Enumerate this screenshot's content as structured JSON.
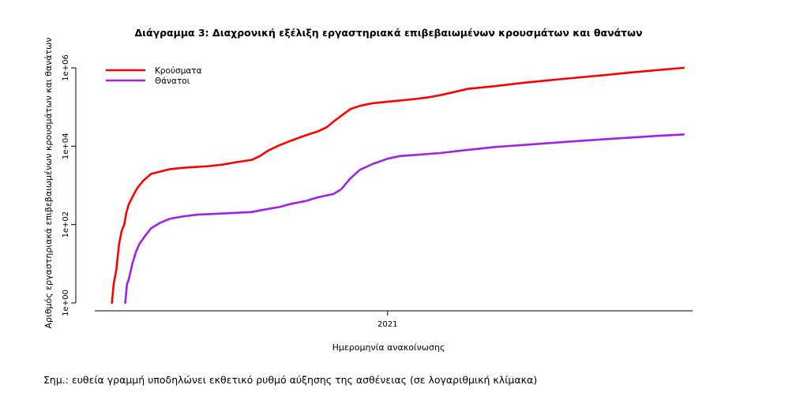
{
  "top_fragment": "¨ ¨",
  "note": "Σημ.: ευθεία γραμμή υποδηλώνει εκθετικό ρυθμό αύξησης της ασθένειας (σε λογαριθμική κλίμακα)",
  "chart_data": {
    "type": "line",
    "title": "Διάγραμμα 3: Διαχρονική εξέλιξη εργαστηριακά επιβεβαιωμένων κρουσμάτων και θανάτων",
    "xlabel": "Ημερομηνία ανακοίνωσης",
    "ylabel": "Αριθμός εργαστηριακά επιβεβαιωμένων κρουσμάτων και θανάτων",
    "y_scale": "log10",
    "ylim": [
      1,
      1000000
    ],
    "yticks": [
      {
        "value": 1,
        "label": "1e+00"
      },
      {
        "value": 100,
        "label": "1e+02"
      },
      {
        "value": 10000,
        "label": "1e+04"
      },
      {
        "value": 1000000,
        "label": "1e+06"
      }
    ],
    "xlim": [
      "2020-01-20",
      "2021-12-10"
    ],
    "xticks": [
      {
        "value": "2021-01-01",
        "label": "2021"
      }
    ],
    "grid": false,
    "legend": "top-left",
    "series": [
      {
        "name": "Κρούσματα",
        "color": "#ff0000",
        "points": [
          [
            "2020-02-26",
            1
          ],
          [
            "2020-02-28",
            3
          ],
          [
            "2020-03-02",
            7
          ],
          [
            "2020-03-05",
            31
          ],
          [
            "2020-03-08",
            70
          ],
          [
            "2020-03-11",
            100
          ],
          [
            "2020-03-13",
            190
          ],
          [
            "2020-03-16",
            331
          ],
          [
            "2020-03-20",
            500
          ],
          [
            "2020-03-25",
            820
          ],
          [
            "2020-04-01",
            1300
          ],
          [
            "2020-04-10",
            1960
          ],
          [
            "2020-04-20",
            2245
          ],
          [
            "2020-05-01",
            2591
          ],
          [
            "2020-05-15",
            2800
          ],
          [
            "2020-06-01",
            2958
          ],
          [
            "2020-06-15",
            3121
          ],
          [
            "2020-07-01",
            3432
          ],
          [
            "2020-07-15",
            3900
          ],
          [
            "2020-08-01",
            4477
          ],
          [
            "2020-08-10",
            5500
          ],
          [
            "2020-08-20",
            7800
          ],
          [
            "2020-09-01",
            10500
          ],
          [
            "2020-09-15",
            14000
          ],
          [
            "2020-10-01",
            19000
          ],
          [
            "2020-10-15",
            24000
          ],
          [
            "2020-10-25",
            31000
          ],
          [
            "2020-11-01",
            42000
          ],
          [
            "2020-11-10",
            60000
          ],
          [
            "2020-11-20",
            88000
          ],
          [
            "2020-12-01",
            107000
          ],
          [
            "2020-12-15",
            125000
          ],
          [
            "2021-01-01",
            137000
          ],
          [
            "2021-01-15",
            147000
          ],
          [
            "2021-02-01",
            160000
          ],
          [
            "2021-02-15",
            175000
          ],
          [
            "2021-03-01",
            200000
          ],
          [
            "2021-03-15",
            235000
          ],
          [
            "2021-04-01",
            290000
          ],
          [
            "2021-05-01",
            340000
          ],
          [
            "2021-06-01",
            410000
          ],
          [
            "2021-07-01",
            480000
          ],
          [
            "2021-08-01",
            560000
          ],
          [
            "2021-09-01",
            650000
          ],
          [
            "2021-10-01",
            760000
          ],
          [
            "2021-11-01",
            880000
          ],
          [
            "2021-11-30",
            1000000
          ]
        ]
      },
      {
        "name": "Θάνατοι",
        "color": "#a020f0",
        "points": [
          [
            "2020-03-12",
            1
          ],
          [
            "2020-03-14",
            3
          ],
          [
            "2020-03-16",
            4
          ],
          [
            "2020-03-20",
            10
          ],
          [
            "2020-03-24",
            20
          ],
          [
            "2020-03-28",
            32
          ],
          [
            "2020-04-03",
            50
          ],
          [
            "2020-04-10",
            80
          ],
          [
            "2020-04-20",
            110
          ],
          [
            "2020-05-01",
            140
          ],
          [
            "2020-05-15",
            160
          ],
          [
            "2020-06-01",
            179
          ],
          [
            "2020-07-01",
            192
          ],
          [
            "2020-08-01",
            209
          ],
          [
            "2020-08-15",
            240
          ],
          [
            "2020-09-01",
            280
          ],
          [
            "2020-09-15",
            340
          ],
          [
            "2020-10-01",
            400
          ],
          [
            "2020-10-15",
            500
          ],
          [
            "2020-11-01",
            600
          ],
          [
            "2020-11-10",
            800
          ],
          [
            "2020-11-20",
            1500
          ],
          [
            "2020-12-01",
            2500
          ],
          [
            "2020-12-15",
            3500
          ],
          [
            "2021-01-01",
            4800
          ],
          [
            "2021-01-15",
            5600
          ],
          [
            "2021-02-01",
            6000
          ],
          [
            "2021-03-01",
            6700
          ],
          [
            "2021-04-01",
            8000
          ],
          [
            "2021-05-01",
            9500
          ],
          [
            "2021-06-01",
            10700
          ],
          [
            "2021-07-01",
            12000
          ],
          [
            "2021-08-01",
            13500
          ],
          [
            "2021-09-01",
            15000
          ],
          [
            "2021-10-01",
            16600
          ],
          [
            "2021-11-01",
            18400
          ],
          [
            "2021-11-30",
            20000
          ]
        ]
      }
    ]
  }
}
